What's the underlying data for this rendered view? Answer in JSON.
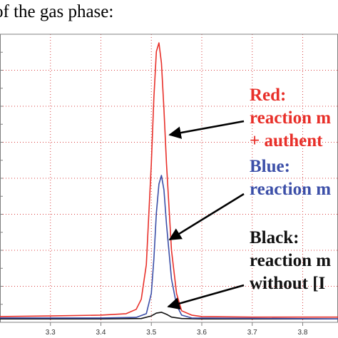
{
  "caption": "of the gas phase:",
  "colors": {
    "red": "#e8302a",
    "blue": "#3c4fa8",
    "black": "#111111",
    "grid": "#d84040",
    "axis": "#808080",
    "text_red": "#e8302a",
    "text_blue": "#3c4fa8"
  },
  "chart_data": {
    "type": "line",
    "title": "",
    "xlabel": "",
    "ylabel": "",
    "xlim": [
      3.2,
      3.87
    ],
    "ylim": [
      0,
      1.0
    ],
    "x_ticks": [
      "3.3",
      "3.4",
      "3.5",
      "3.6",
      "3.7",
      "3.8"
    ],
    "x_tick_values": [
      3.3,
      3.4,
      3.5,
      3.6,
      3.7,
      3.8
    ],
    "grid": true,
    "series": [
      {
        "key": "red",
        "x": [
          3.2,
          3.3,
          3.4,
          3.45,
          3.47,
          3.48,
          3.49,
          3.5,
          3.505,
          3.51,
          3.515,
          3.52,
          3.525,
          3.53,
          3.54,
          3.55,
          3.56,
          3.58,
          3.6,
          3.7,
          3.87
        ],
        "y": [
          0.02,
          0.022,
          0.025,
          0.03,
          0.045,
          0.08,
          0.2,
          0.55,
          0.78,
          0.94,
          0.97,
          0.9,
          0.74,
          0.55,
          0.25,
          0.1,
          0.04,
          0.025,
          0.02,
          0.018,
          0.018
        ]
      },
      {
        "key": "blue",
        "x": [
          3.2,
          3.4,
          3.47,
          3.49,
          3.5,
          3.505,
          3.51,
          3.515,
          3.52,
          3.525,
          3.53,
          3.54,
          3.55,
          3.56,
          3.58,
          3.87
        ],
        "y": [
          0.015,
          0.015,
          0.017,
          0.03,
          0.1,
          0.22,
          0.38,
          0.48,
          0.51,
          0.46,
          0.34,
          0.15,
          0.06,
          0.025,
          0.015,
          0.012
        ]
      },
      {
        "key": "black",
        "x": [
          3.2,
          3.4,
          3.48,
          3.5,
          3.51,
          3.52,
          3.53,
          3.54,
          3.56,
          3.6,
          3.87
        ],
        "y": [
          0.012,
          0.012,
          0.013,
          0.022,
          0.032,
          0.035,
          0.028,
          0.018,
          0.013,
          0.012,
          0.012
        ]
      }
    ],
    "annotations": [
      {
        "key": "red",
        "lines": [
          "Red:",
          "reaction m",
          "+ authent"
        ]
      },
      {
        "key": "blue",
        "lines": [
          "Blue:",
          "reaction m"
        ]
      },
      {
        "key": "black",
        "lines": [
          "Black:",
          "reaction m",
          "without [I"
        ]
      }
    ]
  }
}
